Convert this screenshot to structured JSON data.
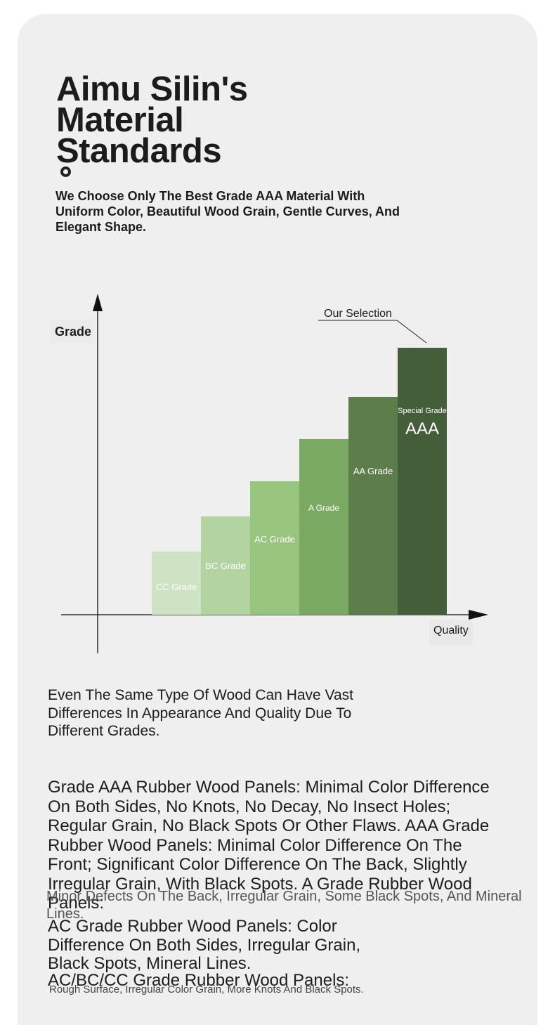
{
  "heading": {
    "title_lines": [
      "Aimu Silin's",
      "Material",
      "Standards"
    ],
    "subtitle": "We Choose Only The Best Grade AAA Material With Uniform Color, Beautiful Wood Grain, Gentle Curves, And Elegant Shape."
  },
  "chart_data": {
    "type": "bar",
    "ylabel": "Grade",
    "xlabel": "Quality",
    "annotation": "Our Selection",
    "categories": [
      "CC Grade",
      "BC Grade",
      "AC Grade",
      "A Grade",
      "AA Grade",
      "Special Grade AAA"
    ],
    "labels": [
      {
        "text": "CC Grade",
        "extra": ""
      },
      {
        "text": "BC Grade",
        "extra": ""
      },
      {
        "text": "AC Grade",
        "extra": ""
      },
      {
        "text": "A Grade",
        "extra": ""
      },
      {
        "text": "AA Grade",
        "extra": ""
      },
      {
        "text": "Special Grade",
        "extra": "AAA"
      }
    ],
    "values": [
      1,
      2,
      3,
      4,
      5,
      6
    ],
    "colors": [
      "#cde3c4",
      "#b3d4a1",
      "#99c67f",
      "#7aa962",
      "#5d7e4a",
      "#455e3a"
    ],
    "label_colors": [
      "#ffffff",
      "#ffffff",
      "#ffffff",
      "#ffffff",
      "#ffffff",
      "#ffffff"
    ],
    "ylim": [
      0,
      6
    ]
  },
  "paragraphs": {
    "intro": "Even The Same Type Of Wood Can Have Vast Differences In Appearance And Quality Due To Different Grades.",
    "aaa": "Grade AAA Rubber Wood Panels: Minimal Color Difference On Both Sides, No Knots, No Decay, No Insect Holes; Regular Grain, No Black Spots Or Other Flaws. AAA Grade Rubber Wood Panels: Minimal Color Difference On The Front; Significant Color Difference On The Back, Slightly Irregular Grain, With Black Spots. A Grade Rubber Wood Panels:",
    "a_details": "Minor Defects On The Back, Irregular Grain, Some Black Spots, And Mineral Lines.",
    "ac": "AC Grade Rubber Wood Panels: Color Difference On Both Sides, Irregular Grain, Black Spots, Mineral Lines.",
    "acbccc": "AC/BC/CC Grade Rubber Wood Panels:",
    "acbccc_details": "Rough Surface, Irregular Color Grain, More Knots And Black Spots."
  }
}
